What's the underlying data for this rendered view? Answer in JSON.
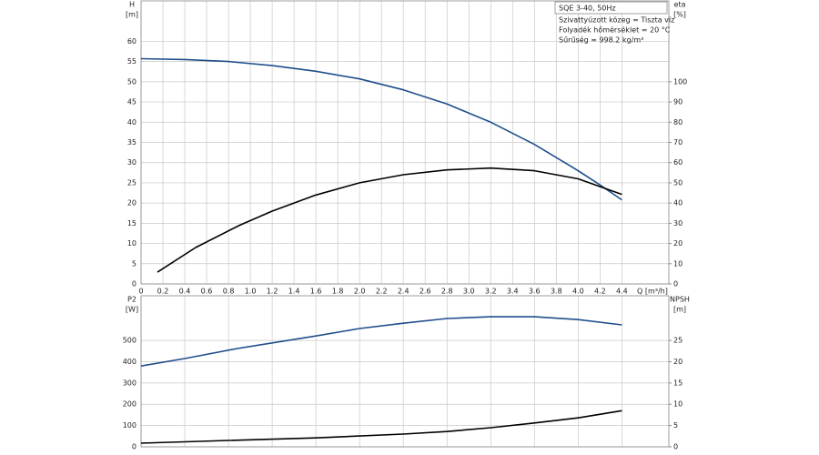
{
  "chart_data": [
    {
      "type": "line",
      "ylabel": "H",
      "yunit": "[m]",
      "y2label": "eta",
      "y2unit": "[%]",
      "xlabel": "Q [m³/h]",
      "xlim": [
        0,
        4.83
      ],
      "ylim": [
        0,
        70
      ],
      "y2lim": [
        0,
        140
      ],
      "xticks": [
        0,
        0.2,
        0.4,
        0.6,
        0.8,
        {
          "value": 1,
          "label": "1.0"
        },
        1.2,
        1.4,
        1.6,
        1.8,
        {
          "value": 2,
          "label": "2.0"
        },
        2.2,
        2.4,
        2.6,
        2.8,
        {
          "value": 3,
          "label": "3.0"
        },
        3.2,
        3.4,
        3.6,
        3.8,
        {
          "value": 4,
          "label": "4.0"
        },
        4.2,
        4.4
      ],
      "yticks": [
        0,
        5,
        10,
        15,
        20,
        25,
        30,
        35,
        40,
        45,
        50,
        55,
        60
      ],
      "y2ticks": [
        0,
        10,
        20,
        30,
        40,
        50,
        60,
        70,
        80,
        90,
        100
      ],
      "grid": true,
      "series": [
        {
          "color": "#1f4e8c",
          "x": [
            0,
            0.4,
            0.8,
            1.2,
            1.6,
            2.0,
            2.4,
            2.8,
            3.2,
            3.6,
            4.0,
            4.2,
            4.4
          ],
          "values": [
            55.7,
            55.5,
            55,
            54,
            52.6,
            50.7,
            48,
            44.5,
            40,
            34.5,
            28,
            24.5,
            20.8
          ]
        },
        {
          "color": "#000000",
          "axis": "y2",
          "x": [
            0.15,
            0.5,
            0.9,
            1.2,
            1.6,
            2.0,
            2.4,
            2.8,
            3.2,
            3.6,
            4.0,
            4.4
          ],
          "values": [
            5.8,
            18,
            29,
            36,
            44,
            50,
            54,
            56.4,
            57.3,
            56,
            52,
            44.3
          ]
        }
      ],
      "annotation": {
        "title": "SQE 3-40, 50Hz",
        "lines": [
          "Szivattyúzott közeg = Tiszta víz",
          "Folyadék hőmérséklet = 20 °C",
          "Sűrűség = 998.2 kg/m³"
        ]
      }
    },
    {
      "type": "line",
      "ylabel": "P2",
      "yunit": "[W]",
      "y2label": "NPSH",
      "y2unit": "[m]",
      "xlim": [
        0,
        4.83
      ],
      "ylim": [
        0,
        710
      ],
      "y2lim": [
        0,
        35.5
      ],
      "xticks": [
        0,
        0.4,
        0.8,
        1.2,
        1.6,
        2.0,
        2.4,
        2.8,
        3.2,
        3.6,
        4.0,
        4.4
      ],
      "yticks": [
        0,
        100,
        200,
        300,
        400,
        500
      ],
      "y2ticks": [
        0,
        5,
        10,
        15,
        20,
        25
      ],
      "grid": true,
      "series": [
        {
          "color": "#1f4e8c",
          "x": [
            0,
            0.4,
            0.88,
            1.6,
            2.0,
            2.4,
            2.8,
            3.2,
            3.6,
            4.0,
            4.4
          ],
          "values": [
            380,
            415,
            462,
            521,
            556,
            581,
            603,
            611,
            611,
            598,
            573
          ]
        },
        {
          "color": "#000000",
          "axis": "y2",
          "x": [
            0,
            0.8,
            1.6,
            2.4,
            2.8,
            3.2,
            3.6,
            4.0,
            4.4
          ],
          "values": [
            0.85,
            1.5,
            2.1,
            3,
            3.6,
            4.5,
            5.6,
            6.8,
            8.5
          ]
        }
      ]
    }
  ]
}
